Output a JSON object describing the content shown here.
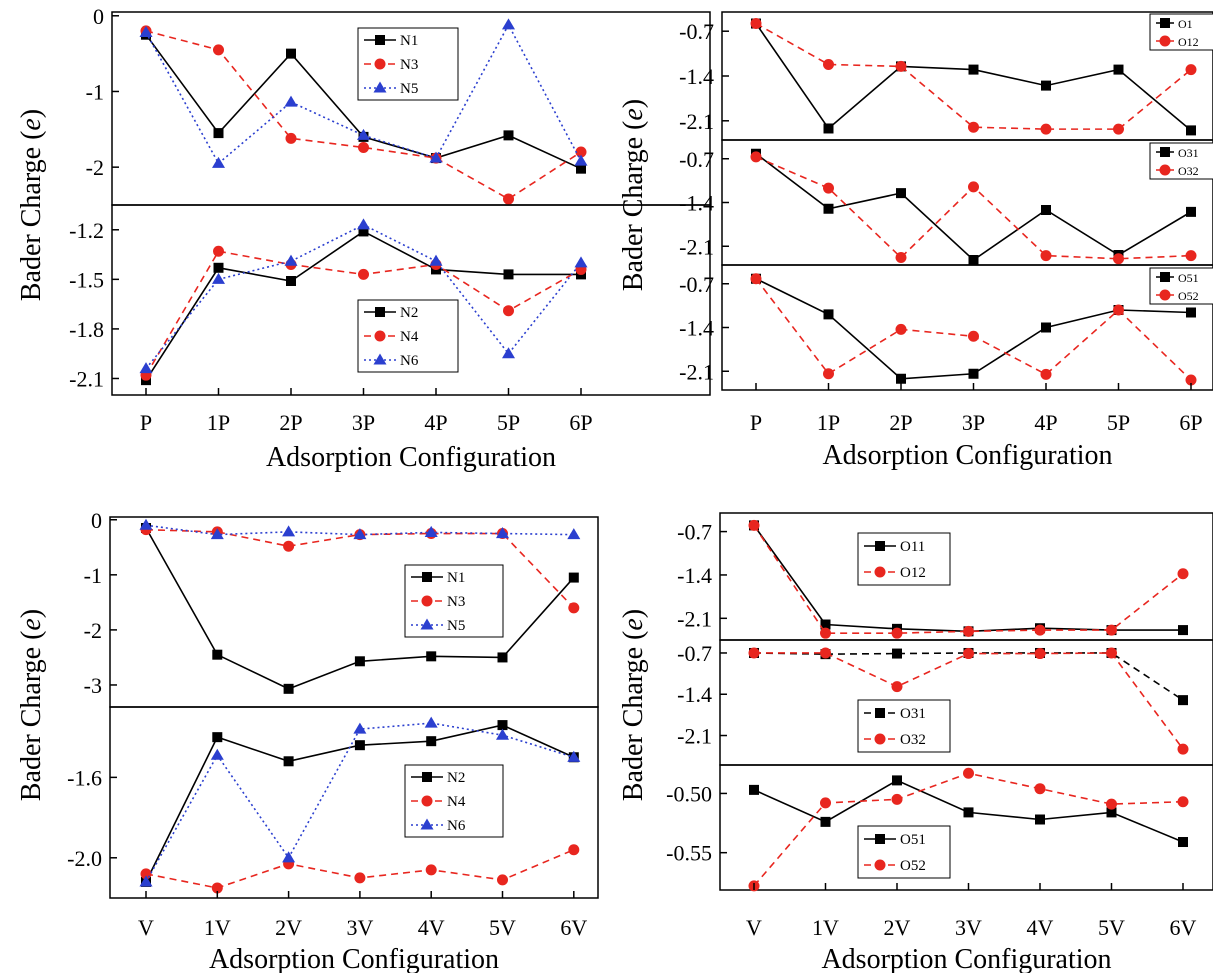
{
  "figure": {
    "ylabel_main": "Bader Charge (",
    "ylabel_var": "e",
    "ylabel_end": ")",
    "xlabel": "Adsorption Configuration",
    "colors": {
      "black": "#000000",
      "red": "#e8261f",
      "blue": "#2b3fcf"
    }
  },
  "chart_data": [
    {
      "type": "line",
      "id": "top-left",
      "categories": [
        "P",
        "1P",
        "2P",
        "3P",
        "4P",
        "5P",
        "6P"
      ],
      "xlabel": "Adsorption Configuration",
      "ylabel": "Bader Charge (e)",
      "subplots": [
        {
          "ylim": [
            -2.5,
            0.05
          ],
          "yticks": [
            0,
            -1,
            -2
          ],
          "ytick_labels": [
            "0",
            "-1",
            "-2"
          ],
          "legend_position": "top-right",
          "series": [
            {
              "name": "N1",
              "color": "#000000",
              "marker": "square",
              "dash": "solid",
              "values": [
                -0.25,
                -1.55,
                -0.5,
                -1.6,
                -1.88,
                -1.58,
                -2.02
              ]
            },
            {
              "name": "N3",
              "color": "#e8261f",
              "marker": "circle",
              "dash": "dashed",
              "values": [
                -0.2,
                -0.45,
                -1.62,
                -1.74,
                -1.88,
                -2.42,
                -1.8
              ]
            },
            {
              "name": "N5",
              "color": "#2b3fcf",
              "marker": "triangle",
              "dash": "dotted",
              "values": [
                -0.22,
                -1.95,
                -1.14,
                -1.58,
                -1.88,
                -0.12,
                -1.92
              ]
            }
          ]
        },
        {
          "ylim": [
            -2.2,
            -1.05
          ],
          "yticks": [
            -1.2,
            -1.5,
            -1.8,
            -2.1
          ],
          "ytick_labels": [
            "-1.2",
            "-1.5",
            "-1.8",
            "-2.1"
          ],
          "legend_position": "bottom-right",
          "series": [
            {
              "name": "N2",
              "color": "#000000",
              "marker": "square",
              "dash": "solid",
              "values": [
                -2.11,
                -1.43,
                -1.51,
                -1.21,
                -1.44,
                -1.47,
                -1.47
              ]
            },
            {
              "name": "N4",
              "color": "#e8261f",
              "marker": "circle",
              "dash": "dashed",
              "values": [
                -2.08,
                -1.33,
                -1.41,
                -1.47,
                -1.41,
                -1.69,
                -1.44
              ]
            },
            {
              "name": "N6",
              "color": "#2b3fcf",
              "marker": "triangle",
              "dash": "dotted",
              "values": [
                -2.04,
                -1.5,
                -1.39,
                -1.17,
                -1.39,
                -1.95,
                -1.4
              ]
            }
          ]
        }
      ]
    },
    {
      "type": "line",
      "id": "top-right",
      "categories": [
        "P",
        "1P",
        "2P",
        "3P",
        "4P",
        "5P",
        "6P"
      ],
      "xlabel": "Adsorption Configuration",
      "ylabel": "Bader Charge (e)",
      "subplots": [
        {
          "ylim": [
            -2.4,
            -0.4
          ],
          "yticks": [
            -0.7,
            -1.4,
            -2.1
          ],
          "ytick_labels": [
            "-0.7",
            "-1.4",
            "-2.1"
          ],
          "legend_position": "top-right",
          "series": [
            {
              "name": "O1",
              "color": "#000000",
              "marker": "square",
              "dash": "solid",
              "values": [
                -0.58,
                -2.22,
                -1.25,
                -1.3,
                -1.55,
                -1.3,
                -2.25
              ]
            },
            {
              "name": "O12",
              "color": "#e8261f",
              "marker": "circle",
              "dash": "dashed",
              "values": [
                -0.58,
                -1.22,
                -1.25,
                -2.2,
                -2.23,
                -2.23,
                -1.3
              ]
            }
          ]
        },
        {
          "ylim": [
            -2.4,
            -0.4
          ],
          "yticks": [
            -0.7,
            -1.4,
            -2.1
          ],
          "ytick_labels": [
            "-0.7",
            "-1.4",
            "-2.1"
          ],
          "legend_position": "top-right",
          "series": [
            {
              "name": "O31",
              "color": "#000000",
              "marker": "square",
              "dash": "solid",
              "values": [
                -0.62,
                -1.5,
                -1.25,
                -2.32,
                -1.52,
                -2.24,
                -1.55
              ]
            },
            {
              "name": "O32",
              "color": "#e8261f",
              "marker": "circle",
              "dash": "dashed",
              "values": [
                -0.67,
                -1.17,
                -2.28,
                -1.15,
                -2.25,
                -2.3,
                -2.25
              ]
            }
          ]
        },
        {
          "ylim": [
            -2.4,
            -0.4
          ],
          "yticks": [
            -0.7,
            -1.4,
            -2.1
          ],
          "ytick_labels": [
            "-0.7",
            "-1.4",
            "-2.1"
          ],
          "legend_position": "top-right",
          "series": [
            {
              "name": "O51",
              "color": "#000000",
              "marker": "square",
              "dash": "solid",
              "values": [
                -0.62,
                -1.19,
                -2.22,
                -2.14,
                -1.4,
                -1.12,
                -1.16
              ]
            },
            {
              "name": "O52",
              "color": "#e8261f",
              "marker": "circle",
              "dash": "dashed",
              "values": [
                -0.62,
                -2.14,
                -1.43,
                -1.54,
                -2.15,
                -1.12,
                -2.24
              ]
            }
          ]
        }
      ]
    },
    {
      "type": "line",
      "id": "bottom-left",
      "categories": [
        "V",
        "1V",
        "2V",
        "3V",
        "4V",
        "5V",
        "6V"
      ],
      "xlabel": "Adsorption Configuration",
      "ylabel": "Bader Charge (e)",
      "subplots": [
        {
          "ylim": [
            -3.4,
            0.05
          ],
          "yticks": [
            0,
            -1,
            -2,
            -3
          ],
          "ytick_labels": [
            "0",
            "-1",
            "-2",
            "-3"
          ],
          "legend_position": "right",
          "series": [
            {
              "name": "N1",
              "color": "#000000",
              "marker": "square",
              "dash": "solid",
              "values": [
                -0.15,
                -2.45,
                -3.07,
                -2.57,
                -2.48,
                -2.5,
                -1.05
              ]
            },
            {
              "name": "N3",
              "color": "#e8261f",
              "marker": "circle",
              "dash": "dashed",
              "values": [
                -0.18,
                -0.22,
                -0.48,
                -0.27,
                -0.25,
                -0.25,
                -1.6
              ]
            },
            {
              "name": "N5",
              "color": "#2b3fcf",
              "marker": "triangle",
              "dash": "dotted",
              "values": [
                -0.1,
                -0.27,
                -0.22,
                -0.27,
                -0.23,
                -0.25,
                -0.27
              ]
            }
          ]
        },
        {
          "ylim": [
            -2.2,
            -1.25
          ],
          "yticks": [
            -1.6,
            -2.0
          ],
          "ytick_labels": [
            "-1.6",
            "-2.0"
          ],
          "legend_position": "right",
          "series": [
            {
              "name": "N2",
              "color": "#000000",
              "marker": "square",
              "dash": "solid",
              "values": [
                -2.12,
                -1.4,
                -1.52,
                -1.44,
                -1.42,
                -1.34,
                -1.5
              ]
            },
            {
              "name": "N4",
              "color": "#e8261f",
              "marker": "circle",
              "dash": "dashed",
              "values": [
                -2.08,
                -2.15,
                -2.03,
                -2.1,
                -2.06,
                -2.11,
                -1.96
              ]
            },
            {
              "name": "N6",
              "color": "#2b3fcf",
              "marker": "triangle",
              "dash": "dotted",
              "values": [
                -2.12,
                -1.49,
                -2.0,
                -1.36,
                -1.33,
                -1.39,
                -1.5
              ]
            }
          ]
        }
      ]
    },
    {
      "type": "line",
      "id": "bottom-right",
      "categories": [
        "V",
        "1V",
        "2V",
        "3V",
        "4V",
        "5V",
        "6V"
      ],
      "xlabel": "Adsorption Configuration",
      "ylabel": "Bader Charge (e)",
      "subplots": [
        {
          "ylim": [
            -2.45,
            -0.4
          ],
          "yticks": [
            -0.7,
            -1.4,
            -2.1
          ],
          "ytick_labels": [
            "-0.7",
            "-1.4",
            "-2.1"
          ],
          "legend_position": "top-left",
          "series": [
            {
              "name": "O11",
              "color": "#000000",
              "marker": "square",
              "dash": "solid",
              "values": [
                -0.6,
                -2.2,
                -2.27,
                -2.31,
                -2.26,
                -2.29,
                -2.29
              ]
            },
            {
              "name": "O12",
              "color": "#e8261f",
              "marker": "circle",
              "dash": "dashed",
              "values": [
                -0.6,
                -2.34,
                -2.34,
                -2.31,
                -2.29,
                -2.29,
                -1.38
              ]
            }
          ]
        },
        {
          "ylim": [
            -2.6,
            -0.48
          ],
          "yticks": [
            -0.7,
            -1.4,
            -2.1
          ],
          "ytick_labels": [
            "-0.7",
            "-1.4",
            "-2.1"
          ],
          "legend_position": "bottom-left",
          "series": [
            {
              "name": "O31",
              "color": "#000000",
              "marker": "square",
              "dash": "dashed",
              "values": [
                -0.7,
                -0.72,
                -0.71,
                -0.7,
                -0.7,
                -0.7,
                -1.5
              ]
            },
            {
              "name": "O32",
              "color": "#e8261f",
              "marker": "circle",
              "dash": "dashed",
              "values": [
                -0.7,
                -0.7,
                -1.27,
                -0.71,
                -0.71,
                -0.7,
                -2.33
              ]
            }
          ]
        },
        {
          "ylim": [
            -0.5815,
            -0.476
          ],
          "yticks": [
            -0.5,
            -0.55
          ],
          "ytick_labels": [
            "-0.50",
            "-0.55"
          ],
          "legend_position": "bottom-left",
          "series": [
            {
              "name": "O51",
              "color": "#000000",
              "marker": "square",
              "dash": "solid",
              "values": [
                -0.497,
                -0.524,
                -0.489,
                -0.516,
                -0.522,
                -0.516,
                -0.541
              ]
            },
            {
              "name": "O52",
              "color": "#e8261f",
              "marker": "circle",
              "dash": "dashed",
              "values": [
                -0.578,
                -0.508,
                -0.505,
                -0.483,
                -0.496,
                -0.509,
                -0.507
              ]
            }
          ]
        }
      ]
    }
  ]
}
